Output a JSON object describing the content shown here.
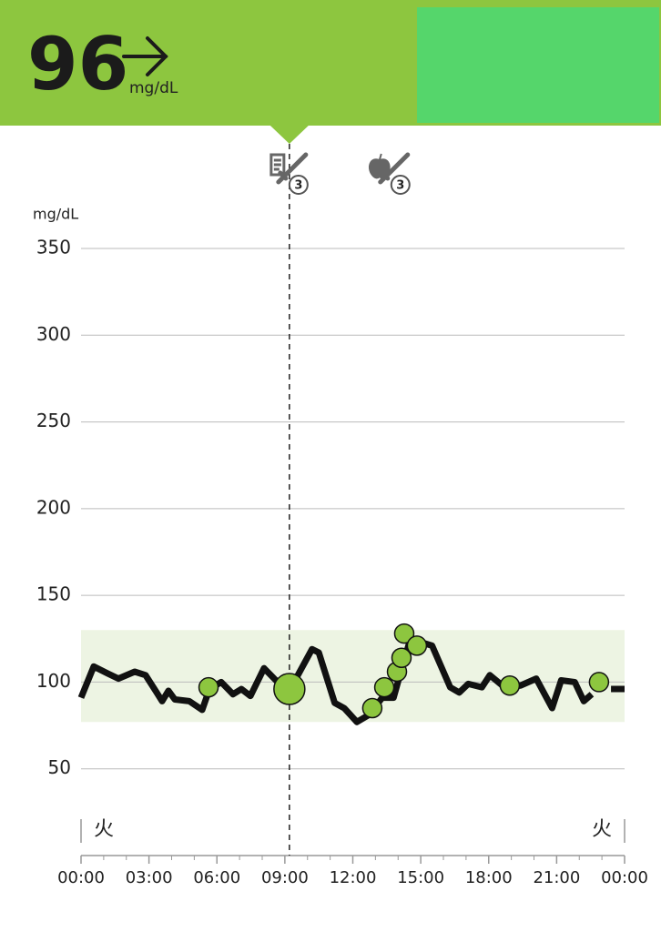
{
  "header": {
    "value": 96,
    "unit": "mg/dL"
  },
  "chart_data": {
    "type": "line",
    "y_label": "mg/dL",
    "xlim": [
      0,
      24
    ],
    "xticks": [
      {
        "value": 0,
        "label": "00:00"
      },
      {
        "value": 3,
        "label": "03:00"
      },
      {
        "value": 6,
        "label": "06:00"
      },
      {
        "value": 9,
        "label": "09:00"
      },
      {
        "value": 12,
        "label": "12:00"
      },
      {
        "value": 15,
        "label": "15:00"
      },
      {
        "value": 18,
        "label": "18:00"
      },
      {
        "value": 21,
        "label": "21:00"
      },
      {
        "value": 24,
        "label": "00:00"
      }
    ],
    "ylim": [
      0,
      350
    ],
    "yticks": [
      50,
      100,
      150,
      200,
      250,
      300,
      350
    ],
    "grid": true,
    "day_labels": [
      "火",
      "火"
    ],
    "target_range": [
      77,
      130
    ],
    "current_x": 9.2,
    "events": [
      {
        "x": 9.2,
        "count": 3
      },
      {
        "x": 13.7,
        "count": 3
      }
    ],
    "line": {
      "color": "#111111",
      "x": [
        0,
        0.56,
        1.17,
        1.65,
        2.37,
        2.85,
        3.34,
        3.58,
        3.86,
        4.14,
        4.78,
        5.35,
        5.67,
        6.19,
        6.71,
        7.08,
        7.48,
        8.08,
        8.68,
        9.2,
        10.2,
        10.5,
        11.2,
        11.62,
        12.18,
        12.7,
        13.3,
        13.8,
        14.1,
        14.5,
        15.0,
        15.5,
        16.3,
        16.7,
        17.1,
        17.7,
        18.05,
        18.7,
        19.4,
        20.1,
        20.8,
        21.2,
        21.8,
        22.2,
        22.55,
        22.9,
        23.4,
        24
      ],
      "values": [
        91,
        109,
        105,
        102,
        106,
        104,
        94,
        89,
        95,
        90,
        89,
        84,
        96,
        100,
        93,
        96,
        92,
        108,
        100,
        95,
        119,
        117,
        88,
        85,
        77,
        81,
        91,
        91,
        105,
        123,
        123,
        121,
        97,
        94,
        99,
        97,
        104,
        97,
        98,
        102,
        85,
        101,
        100,
        89,
        93,
        null,
        96,
        96
      ]
    },
    "scans": {
      "color": "#8dc63f",
      "x": [
        5.63,
        12.86,
        13.39,
        13.95,
        14.15,
        14.27,
        14.83,
        18.93,
        22.87
      ],
      "values": [
        97,
        85,
        97,
        106,
        114,
        128,
        121,
        98,
        100
      ]
    }
  }
}
